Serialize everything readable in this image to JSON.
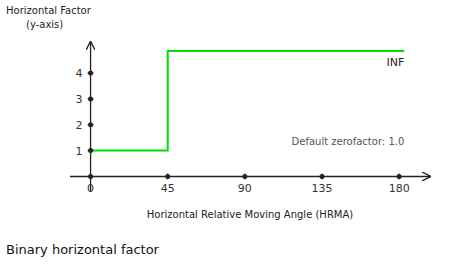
{
  "chart_data": {
    "type": "line",
    "title": "Binary horizontal factor",
    "xlabel": "Horizontal Relative Moving Angle (HRMA)",
    "ylabel": [
      "Horizontal Factor",
      "(y-axis)"
    ],
    "annotations": [
      "INF",
      "Default zerofactor: 1.0"
    ],
    "x": [
      0,
      45,
      45,
      183
    ],
    "series": [
      {
        "name": "Horizontal factor",
        "color": "#00dd00",
        "values": [
          1,
          1,
          4.85,
          4.85
        ]
      }
    ],
    "xlim": [
      -12,
      198
    ],
    "ylim": [
      -0.6,
      5.2
    ],
    "xticks": [
      0,
      45,
      90,
      135,
      180
    ],
    "yticks": [
      1,
      2,
      3,
      4
    ],
    "grid": false
  }
}
